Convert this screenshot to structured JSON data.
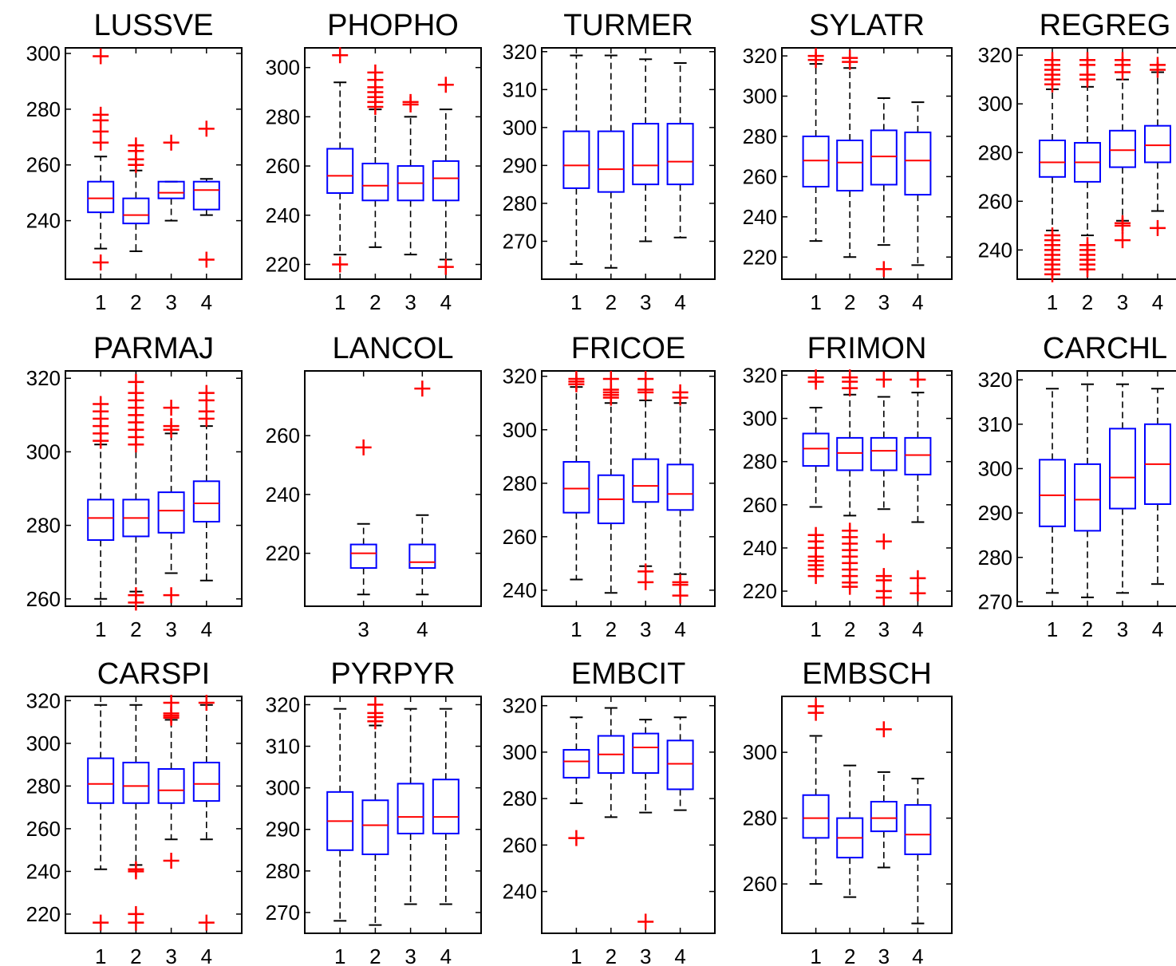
{
  "colors": {
    "box": "#0000ff",
    "median": "#ff0000",
    "whisker": "#000000",
    "outlier": "#ff0000",
    "axes": "#000000"
  },
  "chart_data": [
    {
      "type": "box",
      "title": "LUSSVE",
      "ylim": [
        219,
        302
      ],
      "yticks": [
        240,
        260,
        280,
        300
      ],
      "categories": [
        "1",
        "2",
        "3",
        "4"
      ],
      "boxes": [
        {
          "q1": 243,
          "median": 248,
          "q3": 254,
          "whisker_low": 230,
          "whisker_high": 263,
          "outliers": [
            299,
            278,
            276,
            272,
            268,
            225
          ]
        },
        {
          "q1": 239,
          "median": 242,
          "q3": 248,
          "whisker_low": 229,
          "whisker_high": 258,
          "outliers": [
            267,
            265,
            262,
            260
          ]
        },
        {
          "q1": 248,
          "median": 250,
          "q3": 254,
          "whisker_low": 240,
          "whisker_high": 254,
          "outliers": [
            268
          ]
        },
        {
          "q1": 244,
          "median": 251,
          "q3": 254,
          "whisker_low": 242,
          "whisker_high": 255,
          "outliers": [
            273,
            226
          ]
        }
      ]
    },
    {
      "type": "box",
      "title": "PHOPHO",
      "ylim": [
        214,
        308
      ],
      "yticks": [
        220,
        240,
        260,
        280,
        300
      ],
      "categories": [
        "1",
        "2",
        "3",
        "4"
      ],
      "boxes": [
        {
          "q1": 249,
          "median": 256,
          "q3": 267,
          "whisker_low": 224,
          "whisker_high": 294,
          "outliers": [
            305,
            220
          ]
        },
        {
          "q1": 246,
          "median": 252,
          "q3": 261,
          "whisker_low": 227,
          "whisker_high": 283,
          "outliers": [
            298,
            295,
            292,
            290,
            288,
            286,
            284
          ]
        },
        {
          "q1": 246,
          "median": 253,
          "q3": 260,
          "whisker_low": 224,
          "whisker_high": 280,
          "outliers": [
            286,
            285
          ]
        },
        {
          "q1": 246,
          "median": 255,
          "q3": 262,
          "whisker_low": 222,
          "whisker_high": 283,
          "outliers": [
            293,
            219
          ]
        }
      ]
    },
    {
      "type": "box",
      "title": "TURMER",
      "ylim": [
        260,
        321
      ],
      "yticks": [
        270,
        280,
        290,
        300,
        310,
        320
      ],
      "categories": [
        "1",
        "2",
        "3",
        "4"
      ],
      "boxes": [
        {
          "q1": 284,
          "median": 290,
          "q3": 299,
          "whisker_low": 264,
          "whisker_high": 319,
          "outliers": []
        },
        {
          "q1": 283,
          "median": 289,
          "q3": 299,
          "whisker_low": 263,
          "whisker_high": 319,
          "outliers": []
        },
        {
          "q1": 285,
          "median": 290,
          "q3": 301,
          "whisker_low": 270,
          "whisker_high": 318,
          "outliers": []
        },
        {
          "q1": 285,
          "median": 291,
          "q3": 301,
          "whisker_low": 271,
          "whisker_high": 317,
          "outliers": []
        }
      ]
    },
    {
      "type": "box",
      "title": "SYLATR",
      "ylim": [
        209,
        324
      ],
      "yticks": [
        220,
        240,
        260,
        280,
        300,
        320
      ],
      "categories": [
        "1",
        "2",
        "3",
        "4"
      ],
      "boxes": [
        {
          "q1": 255,
          "median": 268,
          "q3": 280,
          "whisker_low": 228,
          "whisker_high": 316,
          "outliers": [
            320,
            318
          ]
        },
        {
          "q1": 253,
          "median": 267,
          "q3": 278,
          "whisker_low": 220,
          "whisker_high": 314,
          "outliers": [
            319,
            317
          ]
        },
        {
          "q1": 256,
          "median": 270,
          "q3": 283,
          "whisker_low": 226,
          "whisker_high": 299,
          "outliers": [
            214
          ]
        },
        {
          "q1": 251,
          "median": 268,
          "q3": 282,
          "whisker_low": 216,
          "whisker_high": 297,
          "outliers": []
        }
      ]
    },
    {
      "type": "box",
      "title": "REGREG",
      "ylim": [
        228,
        323
      ],
      "yticks": [
        240,
        260,
        280,
        300,
        320
      ],
      "categories": [
        "1",
        "2",
        "3",
        "4"
      ],
      "boxes": [
        {
          "q1": 270,
          "median": 276,
          "q3": 285,
          "whisker_low": 248,
          "whisker_high": 306,
          "outliers": [
            318,
            316,
            314,
            312,
            310,
            308,
            246,
            244,
            242,
            240,
            238,
            236,
            234,
            232,
            230
          ]
        },
        {
          "q1": 268,
          "median": 276,
          "q3": 284,
          "whisker_low": 246,
          "whisker_high": 307,
          "outliers": [
            318,
            316,
            312,
            310,
            242,
            240,
            238,
            236,
            234,
            232
          ]
        },
        {
          "q1": 274,
          "median": 281,
          "q3": 289,
          "whisker_low": 252,
          "whisker_high": 310,
          "outliers": [
            318,
            316,
            313,
            251,
            250,
            244
          ]
        },
        {
          "q1": 276,
          "median": 283,
          "q3": 291,
          "whisker_low": 256,
          "whisker_high": 313,
          "outliers": [
            316,
            314,
            249
          ]
        }
      ]
    },
    {
      "type": "box",
      "title": "PARMAJ",
      "ylim": [
        258,
        322
      ],
      "yticks": [
        260,
        280,
        300,
        320
      ],
      "categories": [
        "1",
        "2",
        "3",
        "4"
      ],
      "boxes": [
        {
          "q1": 276,
          "median": 282,
          "q3": 287,
          "whisker_low": 260,
          "whisker_high": 302,
          "outliers": [
            313,
            311,
            309,
            307,
            305,
            303
          ]
        },
        {
          "q1": 277,
          "median": 282,
          "q3": 287,
          "whisker_low": 262,
          "whisker_high": 302,
          "outliers": [
            319,
            316,
            314,
            312,
            310,
            308,
            306,
            304,
            302,
            261,
            259
          ]
        },
        {
          "q1": 278,
          "median": 284,
          "q3": 289,
          "whisker_low": 267,
          "whisker_high": 305,
          "outliers": [
            312,
            307,
            306,
            261
          ]
        },
        {
          "q1": 281,
          "median": 286,
          "q3": 292,
          "whisker_low": 265,
          "whisker_high": 307,
          "outliers": [
            316,
            314,
            311,
            309
          ]
        }
      ]
    },
    {
      "type": "box",
      "title": "LANCOL",
      "ylim": [
        202,
        282
      ],
      "yticks": [
        220,
        240,
        260
      ],
      "categories": [
        "3",
        "4"
      ],
      "boxes": [
        {
          "q1": 215,
          "median": 220,
          "q3": 223,
          "whisker_low": 206,
          "whisker_high": 230,
          "outliers": [
            256
          ]
        },
        {
          "q1": 215,
          "median": 217,
          "q3": 223,
          "whisker_low": 206,
          "whisker_high": 233,
          "outliers": [
            276
          ]
        }
      ]
    },
    {
      "type": "box",
      "title": "FRICOE",
      "ylim": [
        234,
        322
      ],
      "yticks": [
        240,
        260,
        280,
        300,
        320
      ],
      "categories": [
        "1",
        "2",
        "3",
        "4"
      ],
      "boxes": [
        {
          "q1": 269,
          "median": 278,
          "q3": 288,
          "whisker_low": 244,
          "whisker_high": 316,
          "outliers": [
            319,
            318,
            317
          ]
        },
        {
          "q1": 265,
          "median": 274,
          "q3": 283,
          "whisker_low": 239,
          "whisker_high": 310,
          "outliers": [
            319,
            315,
            314,
            313,
            312
          ]
        },
        {
          "q1": 273,
          "median": 279,
          "q3": 289,
          "whisker_low": 249,
          "whisker_high": 311,
          "outliers": [
            319,
            315,
            314,
            247,
            243
          ]
        },
        {
          "q1": 270,
          "median": 276,
          "q3": 287,
          "whisker_low": 246,
          "whisker_high": 310,
          "outliers": [
            314,
            312,
            243,
            242,
            238
          ]
        }
      ]
    },
    {
      "type": "box",
      "title": "FRIMON",
      "ylim": [
        213,
        322
      ],
      "yticks": [
        220,
        240,
        260,
        280,
        300,
        320
      ],
      "categories": [
        "1",
        "2",
        "3",
        "4"
      ],
      "boxes": [
        {
          "q1": 278,
          "median": 286,
          "q3": 293,
          "whisker_low": 259,
          "whisker_high": 305,
          "outliers": [
            319,
            317,
            246,
            243,
            240,
            236,
            234,
            232,
            230,
            227
          ]
        },
        {
          "q1": 276,
          "median": 284,
          "q3": 291,
          "whisker_low": 255,
          "whisker_high": 311,
          "outliers": [
            319,
            317,
            314,
            248,
            245,
            242,
            239,
            236,
            233,
            230,
            227,
            224,
            222
          ]
        },
        {
          "q1": 276,
          "median": 285,
          "q3": 291,
          "whisker_low": 258,
          "whisker_high": 310,
          "outliers": [
            318,
            243,
            227,
            225,
            220,
            217
          ]
        },
        {
          "q1": 274,
          "median": 283,
          "q3": 291,
          "whisker_low": 252,
          "whisker_high": 312,
          "outliers": [
            318,
            226,
            219
          ]
        }
      ]
    },
    {
      "type": "box",
      "title": "CARCHL",
      "ylim": [
        269,
        322
      ],
      "yticks": [
        270,
        280,
        290,
        300,
        310,
        320
      ],
      "categories": [
        "1",
        "2",
        "3",
        "4"
      ],
      "boxes": [
        {
          "q1": 287,
          "median": 294,
          "q3": 302,
          "whisker_low": 272,
          "whisker_high": 318,
          "outliers": []
        },
        {
          "q1": 286,
          "median": 293,
          "q3": 301,
          "whisker_low": 271,
          "whisker_high": 319,
          "outliers": []
        },
        {
          "q1": 291,
          "median": 298,
          "q3": 309,
          "whisker_low": 272,
          "whisker_high": 319,
          "outliers": []
        },
        {
          "q1": 292,
          "median": 301,
          "q3": 310,
          "whisker_low": 274,
          "whisker_high": 318,
          "outliers": []
        }
      ]
    },
    {
      "type": "box",
      "title": "CARSPI",
      "ylim": [
        211,
        322
      ],
      "yticks": [
        220,
        240,
        260,
        280,
        300,
        320
      ],
      "categories": [
        "1",
        "2",
        "3",
        "4"
      ],
      "boxes": [
        {
          "q1": 272,
          "median": 281,
          "q3": 293,
          "whisker_low": 241,
          "whisker_high": 318,
          "outliers": [
            216
          ]
        },
        {
          "q1": 272,
          "median": 280,
          "q3": 291,
          "whisker_low": 243,
          "whisker_high": 318,
          "outliers": [
            241,
            240,
            220,
            216
          ]
        },
        {
          "q1": 272,
          "median": 278,
          "q3": 288,
          "whisker_low": 255,
          "whisker_high": 311,
          "outliers": [
            319,
            314,
            313,
            312,
            245
          ]
        },
        {
          "q1": 273,
          "median": 281,
          "q3": 291,
          "whisker_low": 255,
          "whisker_high": 318,
          "outliers": [
            319,
            216
          ]
        }
      ]
    },
    {
      "type": "box",
      "title": "PYRPYR",
      "ylim": [
        265,
        322
      ],
      "yticks": [
        270,
        280,
        290,
        300,
        310,
        320
      ],
      "categories": [
        "1",
        "2",
        "3",
        "4"
      ],
      "boxes": [
        {
          "q1": 285,
          "median": 292,
          "q3": 299,
          "whisker_low": 268,
          "whisker_high": 319,
          "outliers": []
        },
        {
          "q1": 284,
          "median": 291,
          "q3": 297,
          "whisker_low": 267,
          "whisker_high": 315,
          "outliers": [
            320,
            318,
            317,
            316
          ]
        },
        {
          "q1": 289,
          "median": 293,
          "q3": 301,
          "whisker_low": 272,
          "whisker_high": 319,
          "outliers": []
        },
        {
          "q1": 289,
          "median": 293,
          "q3": 302,
          "whisker_low": 272,
          "whisker_high": 319,
          "outliers": []
        }
      ]
    },
    {
      "type": "box",
      "title": "EMBCIT",
      "ylim": [
        222,
        324
      ],
      "yticks": [
        240,
        260,
        280,
        300,
        320
      ],
      "categories": [
        "1",
        "2",
        "3",
        "4"
      ],
      "boxes": [
        {
          "q1": 289,
          "median": 296,
          "q3": 301,
          "whisker_low": 278,
          "whisker_high": 315,
          "outliers": [
            263
          ]
        },
        {
          "q1": 291,
          "median": 299,
          "q3": 307,
          "whisker_low": 272,
          "whisker_high": 319,
          "outliers": []
        },
        {
          "q1": 291,
          "median": 302,
          "q3": 308,
          "whisker_low": 274,
          "whisker_high": 314,
          "outliers": [
            227
          ]
        },
        {
          "q1": 284,
          "median": 295,
          "q3": 305,
          "whisker_low": 275,
          "whisker_high": 315,
          "outliers": []
        }
      ]
    },
    {
      "type": "box",
      "title": "EMBSCH",
      "ylim": [
        245,
        317
      ],
      "yticks": [
        260,
        280,
        300
      ],
      "categories": [
        "1",
        "2",
        "3",
        "4"
      ],
      "boxes": [
        {
          "q1": 274,
          "median": 280,
          "q3": 287,
          "whisker_low": 260,
          "whisker_high": 305,
          "outliers": [
            314,
            312
          ]
        },
        {
          "q1": 268,
          "median": 274,
          "q3": 280,
          "whisker_low": 256,
          "whisker_high": 296,
          "outliers": []
        },
        {
          "q1": 276,
          "median": 280,
          "q3": 285,
          "whisker_low": 265,
          "whisker_high": 294,
          "outliers": [
            307
          ]
        },
        {
          "q1": 269,
          "median": 275,
          "q3": 284,
          "whisker_low": 248,
          "whisker_high": 292,
          "outliers": []
        }
      ]
    }
  ]
}
